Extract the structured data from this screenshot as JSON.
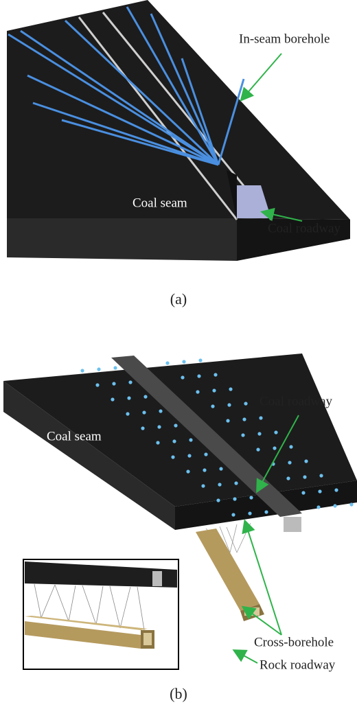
{
  "panels": [
    {
      "labels": {
        "borehole": "In-seam borehole",
        "seam": "Coal seam",
        "roadway": "Coal roadway"
      },
      "caption": "(a)"
    },
    {
      "labels": {
        "roadway": "Coal roadway",
        "seam": "Coal seam",
        "cross": "Cross-borehole",
        "rock": "Rock roadway"
      },
      "caption": "(b)"
    }
  ]
}
